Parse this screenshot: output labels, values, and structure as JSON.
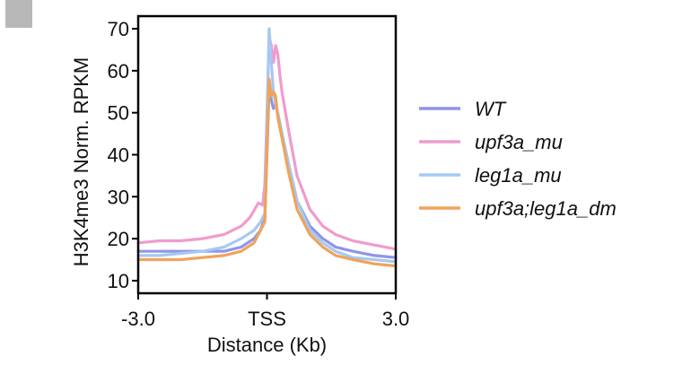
{
  "chart_data": {
    "type": "line",
    "title": "",
    "xlabel": "Distance (Kb)",
    "ylabel": "H3K4me3 Norm. RPKM",
    "x_tick_labels": [
      "-3.0",
      "TSS",
      "3.0"
    ],
    "x_tick_values": [
      -3.0,
      0.0,
      3.0
    ],
    "xlim": [
      -3.0,
      3.0
    ],
    "ylim": [
      7,
      73
    ],
    "y_ticks": [
      10,
      20,
      30,
      40,
      50,
      60,
      70
    ],
    "y_tick_labels": [
      "10",
      "20",
      "30",
      "40",
      "50",
      "60",
      "70"
    ],
    "legend_position": "right",
    "series": [
      {
        "name": "WT",
        "color": "#8f95e6",
        "x": [
          -3.0,
          -2.5,
          -2.0,
          -1.5,
          -1.0,
          -0.6,
          -0.3,
          -0.15,
          -0.05,
          0.0,
          0.05,
          0.1,
          0.15,
          0.2,
          0.25,
          0.35,
          0.5,
          0.7,
          1.0,
          1.3,
          1.6,
          2.0,
          2.5,
          3.0
        ],
        "values": [
          17,
          17,
          17,
          17,
          17,
          18,
          20,
          22,
          25,
          40,
          56,
          53,
          51,
          52,
          50,
          45,
          38,
          29,
          23,
          20,
          18,
          17,
          16,
          15.5
        ]
      },
      {
        "name": "upf3a_mu",
        "color": "#ef9ccd",
        "x": [
          -3.0,
          -2.5,
          -2.0,
          -1.5,
          -1.0,
          -0.6,
          -0.4,
          -0.2,
          -0.1,
          -0.05,
          0.0,
          0.05,
          0.1,
          0.15,
          0.2,
          0.25,
          0.3,
          0.35,
          0.5,
          0.7,
          1.0,
          1.3,
          1.6,
          2.0,
          2.5,
          3.0
        ],
        "values": [
          19,
          19.5,
          19.5,
          20,
          21,
          23,
          25,
          28.5,
          28,
          33,
          50,
          68,
          66,
          62,
          66,
          64,
          59,
          55,
          46,
          35,
          27,
          23,
          21,
          19.5,
          18.5,
          17.5
        ]
      },
      {
        "name": "leg1a_mu",
        "color": "#a5c9f3",
        "x": [
          -3.0,
          -2.5,
          -2.0,
          -1.5,
          -1.0,
          -0.6,
          -0.3,
          -0.15,
          -0.05,
          0.0,
          0.05,
          0.1,
          0.15,
          0.2,
          0.25,
          0.35,
          0.5,
          0.7,
          1.0,
          1.3,
          1.6,
          2.0,
          2.5,
          3.0
        ],
        "values": [
          16,
          16,
          16.5,
          17,
          18,
          20,
          22,
          24,
          26,
          48,
          70,
          62,
          55,
          52,
          50,
          45,
          38,
          29,
          22,
          19,
          17,
          15.5,
          15,
          14.5
        ]
      },
      {
        "name": "upf3a;leg1a_dm",
        "color": "#f0a35a",
        "x": [
          -3.0,
          -2.5,
          -2.0,
          -1.5,
          -1.0,
          -0.6,
          -0.3,
          -0.15,
          -0.05,
          0.0,
          0.05,
          0.1,
          0.15,
          0.2,
          0.25,
          0.35,
          0.5,
          0.7,
          1.0,
          1.3,
          1.6,
          2.0,
          2.5,
          3.0
        ],
        "values": [
          15,
          15,
          15,
          15.5,
          16,
          17,
          19,
          22,
          24,
          41,
          58,
          54,
          55,
          54,
          49,
          44,
          36,
          27,
          21,
          18,
          16,
          15,
          14,
          13.5
        ]
      }
    ]
  }
}
